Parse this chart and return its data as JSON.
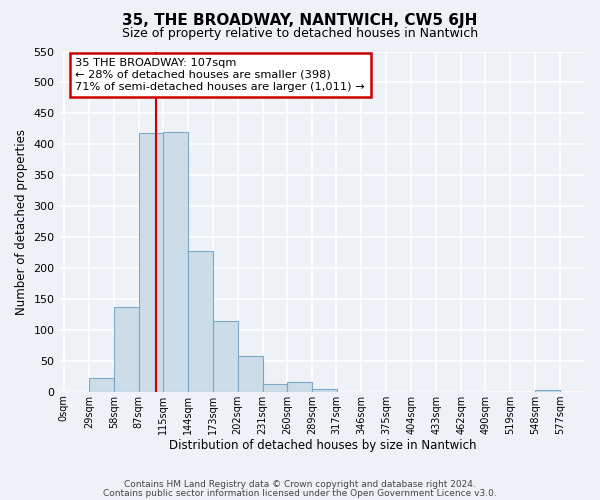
{
  "title": "35, THE BROADWAY, NANTWICH, CW5 6JH",
  "subtitle": "Size of property relative to detached houses in Nantwich",
  "xlabel": "Distribution of detached houses by size in Nantwich",
  "ylabel": "Number of detached properties",
  "bar_values": [
    0,
    22,
    137,
    418,
    420,
    228,
    115,
    57,
    13,
    15,
    5,
    0,
    0,
    0,
    0,
    0,
    0,
    3
  ],
  "bar_left_edges": [
    0,
    29,
    58,
    87,
    115,
    144,
    173,
    202,
    231,
    260,
    289,
    317,
    346,
    375,
    404,
    433,
    462,
    548
  ],
  "bin_width": 29,
  "tick_labels": [
    "0sqm",
    "29sqm",
    "58sqm",
    "87sqm",
    "115sqm",
    "144sqm",
    "173sqm",
    "202sqm",
    "231sqm",
    "260sqm",
    "289sqm",
    "317sqm",
    "346sqm",
    "375sqm",
    "404sqm",
    "433sqm",
    "462sqm",
    "490sqm",
    "519sqm",
    "548sqm",
    "577sqm"
  ],
  "tick_positions": [
    0,
    29,
    58,
    87,
    115,
    144,
    173,
    202,
    231,
    260,
    289,
    317,
    346,
    375,
    404,
    433,
    462,
    490,
    519,
    548,
    577
  ],
  "bar_color": "#ccdce8",
  "bar_edge_color": "#7aaac8",
  "vline_x": 107,
  "vline_color": "#cc0000",
  "annotation_title": "35 THE BROADWAY: 107sqm",
  "annotation_line1": "← 28% of detached houses are smaller (398)",
  "annotation_line2": "71% of semi-detached houses are larger (1,011) →",
  "annotation_box_color": "#cc0000",
  "ylim": [
    0,
    550
  ],
  "yticks": [
    0,
    50,
    100,
    150,
    200,
    250,
    300,
    350,
    400,
    450,
    500,
    550
  ],
  "footer_line1": "Contains HM Land Registry data © Crown copyright and database right 2024.",
  "footer_line2": "Contains public sector information licensed under the Open Government Licence v3.0.",
  "bg_color": "#eef2f7",
  "grid_color": "#ffffff",
  "xlim_min": -5,
  "xlim_max": 606
}
